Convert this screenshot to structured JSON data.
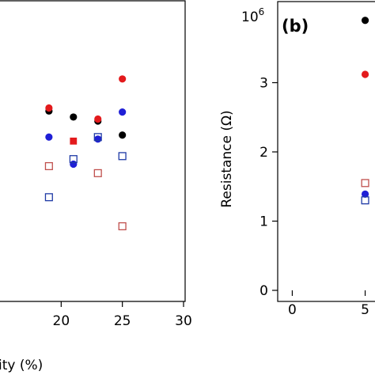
{
  "chart_data": [
    {
      "type": "scatter",
      "panel_label": "",
      "xlabel": "ity (%)",
      "ylabel": "",
      "xlim": [
        15,
        30
      ],
      "ylim": [
        0,
        3
      ],
      "x_ticks": [
        "20",
        "25",
        "30"
      ],
      "grid": false,
      "series": [
        {
          "marker": "filled-circle",
          "color": "#000000",
          "points": [
            [
              19,
              1.9
            ],
            [
              21,
              1.84
            ],
            [
              23,
              1.8
            ],
            [
              25,
              1.66
            ]
          ]
        },
        {
          "marker": "filled-circle",
          "color": "#e31a1c",
          "points": [
            [
              19,
              1.93
            ],
            [
              23,
              1.82
            ],
            [
              25,
              2.22
            ]
          ]
        },
        {
          "marker": "filled-square",
          "color": "#e31a1c",
          "points": [
            [
              21,
              1.6
            ]
          ]
        },
        {
          "marker": "filled-circle",
          "color": "#1f1fd6",
          "points": [
            [
              19,
              1.64
            ],
            [
              21,
              1.37
            ],
            [
              23,
              1.62
            ],
            [
              25,
              1.89
            ]
          ]
        },
        {
          "marker": "open-square",
          "color": "#c0504d",
          "points": [
            [
              19,
              1.35
            ],
            [
              23,
              1.28
            ],
            [
              25,
              0.75
            ]
          ]
        },
        {
          "marker": "open-square",
          "color": "#1f3aa6",
          "points": [
            [
              19,
              1.04
            ],
            [
              21,
              1.42
            ],
            [
              23,
              1.64
            ],
            [
              25,
              1.45
            ]
          ]
        }
      ]
    },
    {
      "type": "scatter",
      "panel_label": "(b)",
      "xlabel": "",
      "ylabel": "Resistance (Ω)",
      "y_scale_prefix": "10",
      "y_scale_exponent": "6",
      "xlim": [
        -1,
        6
      ],
      "ylim": [
        0,
        4
      ],
      "x_ticks": [
        "0",
        "5"
      ],
      "y_ticks": [
        "0",
        "1",
        "2",
        "3"
      ],
      "grid": false,
      "series": [
        {
          "marker": "filled-circle",
          "color": "#000000",
          "points": [
            [
              5,
              3.9
            ]
          ]
        },
        {
          "marker": "filled-circle",
          "color": "#e31a1c",
          "points": [
            [
              5,
              3.12
            ]
          ]
        },
        {
          "marker": "open-square",
          "color": "#c0504d",
          "points": [
            [
              5,
              1.55
            ]
          ]
        },
        {
          "marker": "filled-circle",
          "color": "#1f1fd6",
          "points": [
            [
              5,
              1.39
            ]
          ]
        },
        {
          "marker": "open-square",
          "color": "#1f3aa6",
          "points": [
            [
              5,
              1.3
            ]
          ]
        }
      ]
    }
  ]
}
